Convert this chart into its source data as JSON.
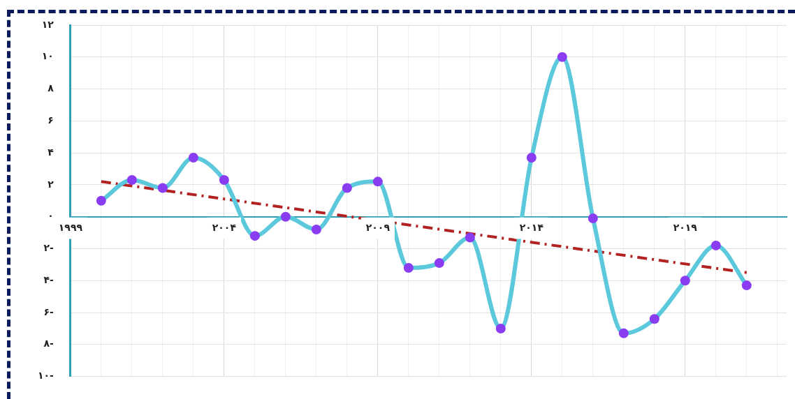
{
  "chart_data": {
    "type": "line",
    "x": [
      2000,
      2001,
      2002,
      2003,
      2004,
      2005,
      2006,
      2007,
      2008,
      2009,
      2010,
      2011,
      2012,
      2013,
      2014,
      2015,
      2016,
      2017,
      2018,
      2019,
      2020,
      2021
    ],
    "series": [
      {
        "color": "#5bc8dc",
        "colors": [
          "#8a3cf0",
          "#8a3cf0",
          "#8a3cf0",
          "#8a3cf0",
          "#8a3cf0",
          "#8a3cf0",
          "#8a3cf0",
          "#8a3cf0",
          "#8a3cf0",
          "#8a3cf0",
          "#8a3cf0",
          "#8a3cf0",
          "#8a3cf0",
          "#8a3cf0",
          "#8a3cf0",
          "#8a3cf0",
          "#8a3cf0",
          "#8a3cf0",
          "#8a3cf0",
          "#8a3cf0",
          "#8a3cf0",
          "#8a3cf0"
        ],
        "marker": "circle",
        "values": [
          1,
          2.3,
          1.8,
          3.7,
          2.3,
          -1.2,
          0,
          -0.8,
          1.8,
          2.2,
          -3.2,
          -2.9,
          -1.3,
          -7,
          3.7,
          10,
          -0.1,
          -7.3,
          -6.4,
          -4,
          -1.8,
          -4.3
        ]
      },
      {
        "type": "line",
        "x": [
          2000,
          2021
        ],
        "color": "#b22222",
        "marker": "none",
        "line_style": "dashed",
        "values": [
          2.2,
          -3.5
        ]
      }
    ],
    "xlim": [
      1999,
      2022.3
    ],
    "xticks": [
      {
        "value": 1999,
        "label": "۱۹۹۹"
      },
      {
        "value": 2000,
        "label": null
      },
      {
        "value": 2001,
        "label": null
      },
      {
        "value": 2002,
        "label": null
      },
      {
        "value": 2003,
        "label": null
      },
      {
        "value": 2004,
        "label": "۲۰۰۴"
      },
      {
        "value": 2005,
        "label": null
      },
      {
        "value": 2006,
        "label": null
      },
      {
        "value": 2007,
        "label": null
      },
      {
        "value": 2008,
        "label": null
      },
      {
        "value": 2009,
        "label": "۲۰۰۹"
      },
      {
        "value": 2010,
        "label": null
      },
      {
        "value": 2011,
        "label": null
      },
      {
        "value": 2012,
        "label": null
      },
      {
        "value": 2013,
        "label": null
      },
      {
        "value": 2014,
        "label": "۲۰۱۴"
      },
      {
        "value": 2015,
        "label": null
      },
      {
        "value": 2016,
        "label": null
      },
      {
        "value": 2017,
        "label": null
      },
      {
        "value": 2018,
        "label": null
      },
      {
        "value": 2019,
        "label": "۲۰۱۹"
      },
      {
        "value": 2020,
        "label": null
      },
      {
        "value": 2021,
        "label": null
      },
      {
        "value": 2022,
        "label": null
      }
    ],
    "ylim": [
      -10,
      12
    ],
    "yticks": [
      {
        "value": -10,
        "label": "۱۰-"
      },
      {
        "value": -8,
        "label": "۸-"
      },
      {
        "value": -6,
        "label": "۶-"
      },
      {
        "value": -4,
        "label": "۴-"
      },
      {
        "value": -2,
        "label": "۲-"
      },
      {
        "value": 0,
        "label": "۰"
      },
      {
        "value": 2,
        "label": "۲"
      },
      {
        "value": 4,
        "label": "۴"
      },
      {
        "value": 6,
        "label": "۶"
      },
      {
        "value": 8,
        "label": "۸"
      },
      {
        "value": 10,
        "label": "۱۰"
      },
      {
        "value": 12,
        "label": "۱۲"
      }
    ],
    "grid": true,
    "legend": false
  }
}
